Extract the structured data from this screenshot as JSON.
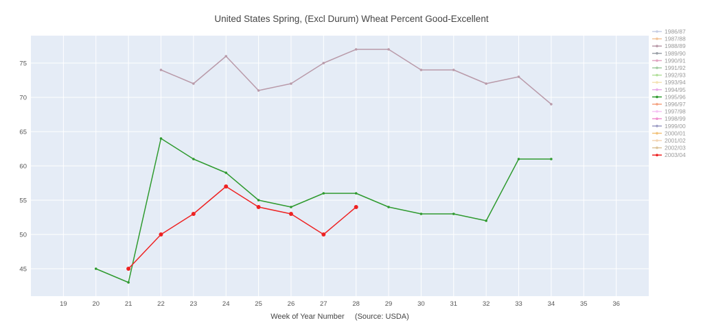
{
  "chart_data": {
    "type": "line",
    "title": "United States Spring, (Excl Durum) Wheat Percent Good-Excellent",
    "xlabel": "Week of Year Number     (Source: USDA)",
    "ylabel": "",
    "xlim": [
      18,
      37
    ],
    "ylim": [
      41,
      79
    ],
    "x_ticks": [
      19,
      20,
      21,
      22,
      23,
      24,
      25,
      26,
      27,
      28,
      29,
      30,
      31,
      32,
      33,
      34,
      35,
      36
    ],
    "y_ticks": [
      45,
      50,
      55,
      60,
      65,
      70,
      75
    ],
    "grid": true,
    "legend_position": "right",
    "series": [
      {
        "name": "1986/87",
        "color": "#c6cde4",
        "x": [],
        "y": []
      },
      {
        "name": "1987/88",
        "color": "#f2c49a",
        "x": [],
        "y": []
      },
      {
        "name": "1988/89",
        "color": "#b99aa9",
        "x": [
          22,
          23,
          24,
          25,
          26,
          27,
          28,
          29,
          30,
          31,
          32,
          33,
          34
        ],
        "y": [
          74,
          72,
          76,
          71,
          72,
          75,
          77,
          77,
          74,
          74,
          72,
          73,
          69
        ]
      },
      {
        "name": "1989/90",
        "color": "#9aa0a7",
        "x": [],
        "y": []
      },
      {
        "name": "1990/91",
        "color": "#e1a4c2",
        "x": [],
        "y": []
      },
      {
        "name": "1991/92",
        "color": "#9fca9f",
        "x": [],
        "y": []
      },
      {
        "name": "1992/93",
        "color": "#b2e09b",
        "x": [],
        "y": []
      },
      {
        "name": "1993/94",
        "color": "#f4e3b2",
        "x": [],
        "y": []
      },
      {
        "name": "1994/95",
        "color": "#e8a9e8",
        "x": [],
        "y": []
      },
      {
        "name": "1995/96",
        "color": "#2e9a2e",
        "x": [
          20,
          21,
          22,
          23,
          24,
          25,
          26,
          27,
          28,
          29,
          30,
          31,
          32,
          33,
          34
        ],
        "y": [
          45,
          43,
          64,
          61,
          59,
          55,
          54,
          56,
          56,
          54,
          53,
          53,
          52,
          61,
          61
        ]
      },
      {
        "name": "1996/97",
        "color": "#f4a07e",
        "x": [],
        "y": []
      },
      {
        "name": "1997/98",
        "color": "#f6c3f4",
        "x": [],
        "y": []
      },
      {
        "name": "1998/99",
        "color": "#f08fcf",
        "x": [],
        "y": []
      },
      {
        "name": "1999/00",
        "color": "#9c9cc4",
        "x": [],
        "y": []
      },
      {
        "name": "2000/01",
        "color": "#f2c27a",
        "x": [],
        "y": []
      },
      {
        "name": "2001/02",
        "color": "#f3d4b3",
        "x": [],
        "y": []
      },
      {
        "name": "2002/03",
        "color": "#dcc49a",
        "x": [],
        "y": []
      },
      {
        "name": "2003/04",
        "color": "#ee2222",
        "x": [
          21,
          22,
          23,
          24,
          25,
          26,
          27,
          28
        ],
        "y": [
          45,
          50,
          53,
          57,
          54,
          53,
          50,
          54
        ]
      }
    ]
  }
}
